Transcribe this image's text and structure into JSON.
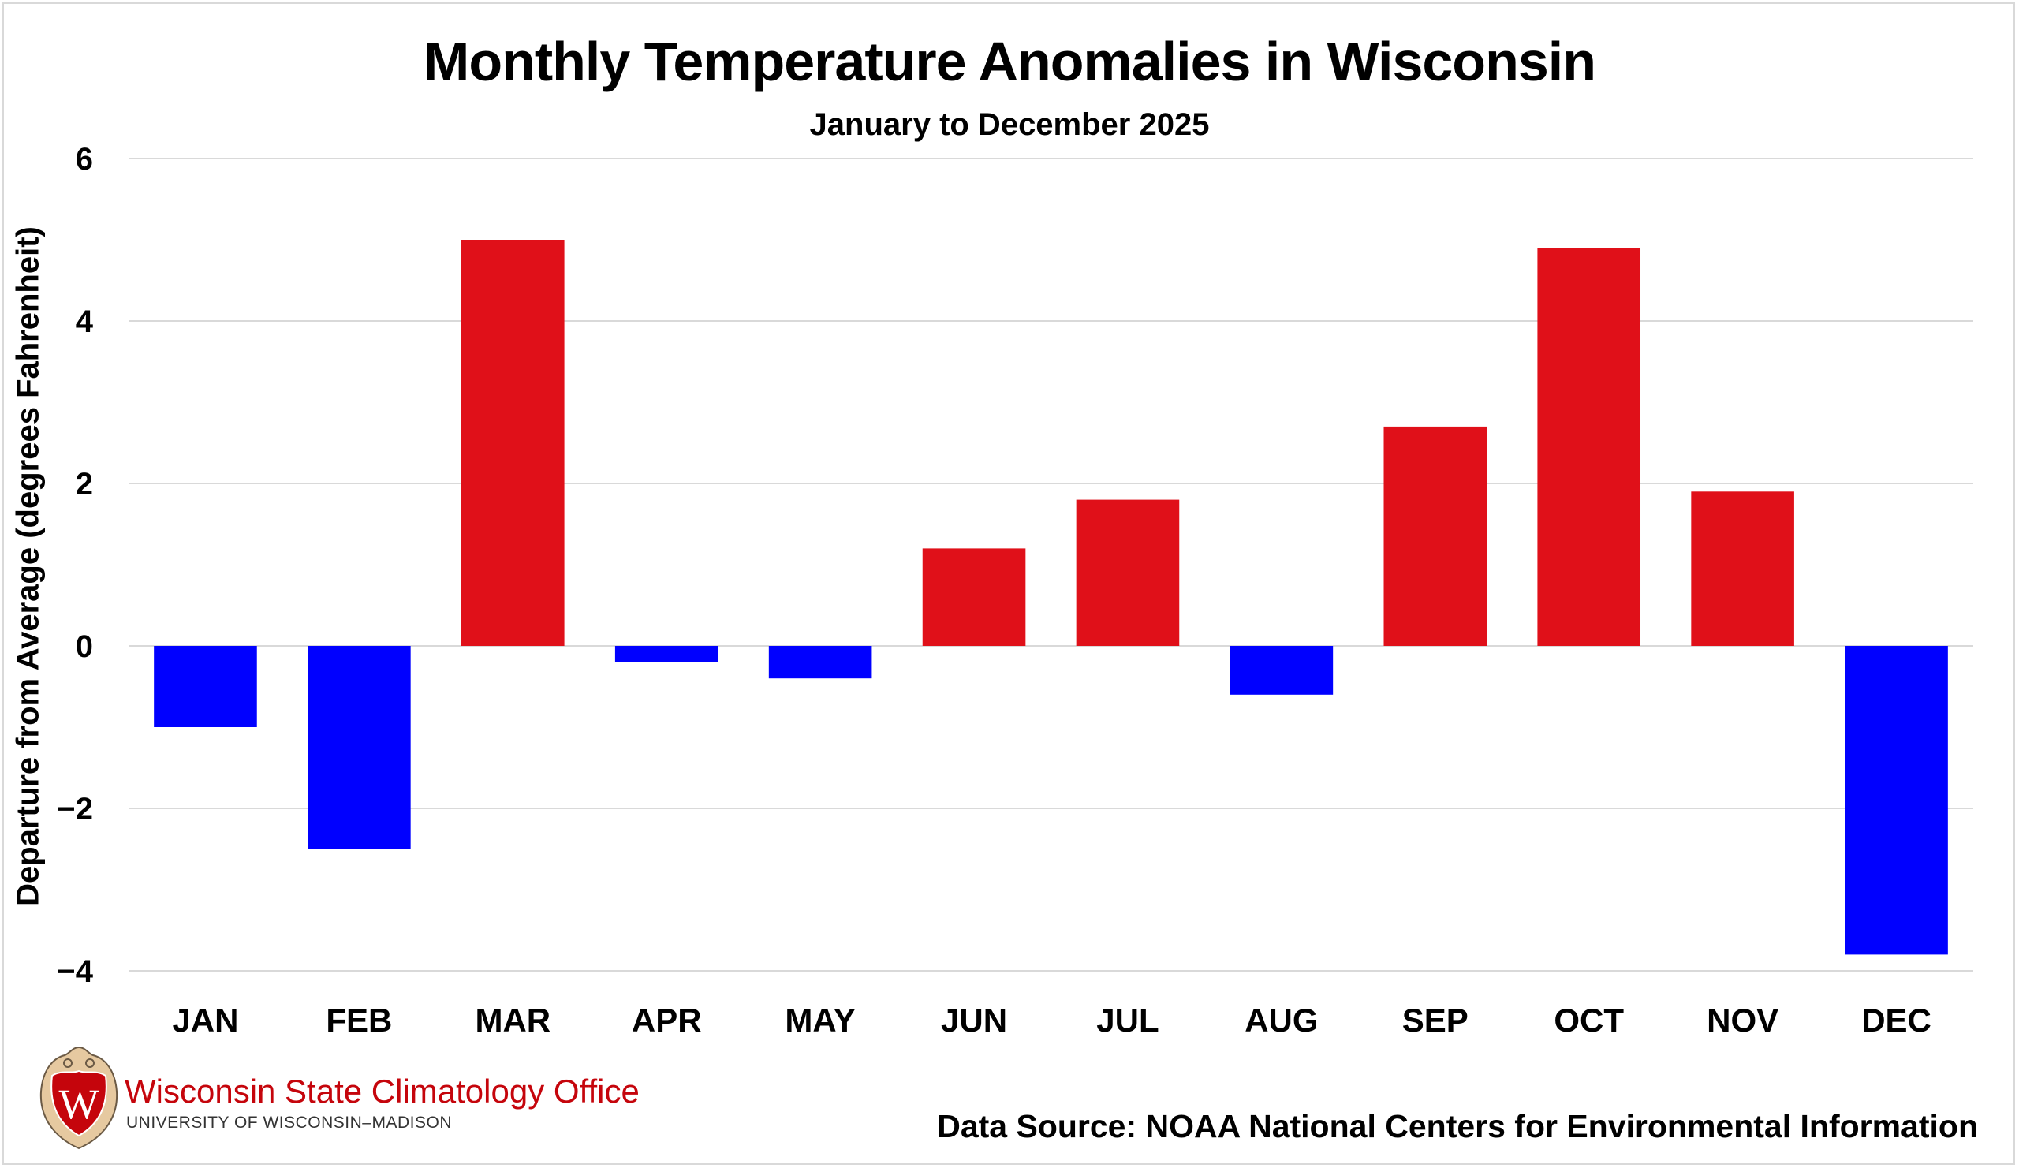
{
  "chart_data": {
    "type": "bar",
    "title": "Monthly Temperature Anomalies in Wisconsin",
    "subtitle": "January to December 2025",
    "xlabel": "",
    "ylabel": "Departure from Average (degrees Fahrenheit)",
    "categories": [
      "JAN",
      "FEB",
      "MAR",
      "APR",
      "MAY",
      "JUN",
      "JUL",
      "AUG",
      "SEP",
      "OCT",
      "NOV",
      "DEC"
    ],
    "values": [
      -1.0,
      -2.5,
      5.0,
      -0.2,
      -0.4,
      1.2,
      1.8,
      -0.6,
      2.7,
      4.9,
      1.9,
      -3.8
    ],
    "ylim": [
      -4,
      6
    ],
    "yticks": [
      6,
      4,
      2,
      0,
      -2,
      -4
    ],
    "grid": true,
    "legend": "none",
    "colors": {
      "positive": "#e01019",
      "negative": "#0000ff",
      "grid": "#d9d9d9"
    }
  },
  "branding": {
    "org_name": "Wisconsin State Climatology Office",
    "org_subtitle": "UNIVERSITY OF WISCONSIN–MADISON",
    "logo_letter": "W"
  },
  "footer": {
    "source": "Data Source: NOAA National Centers for Environmental Information"
  }
}
